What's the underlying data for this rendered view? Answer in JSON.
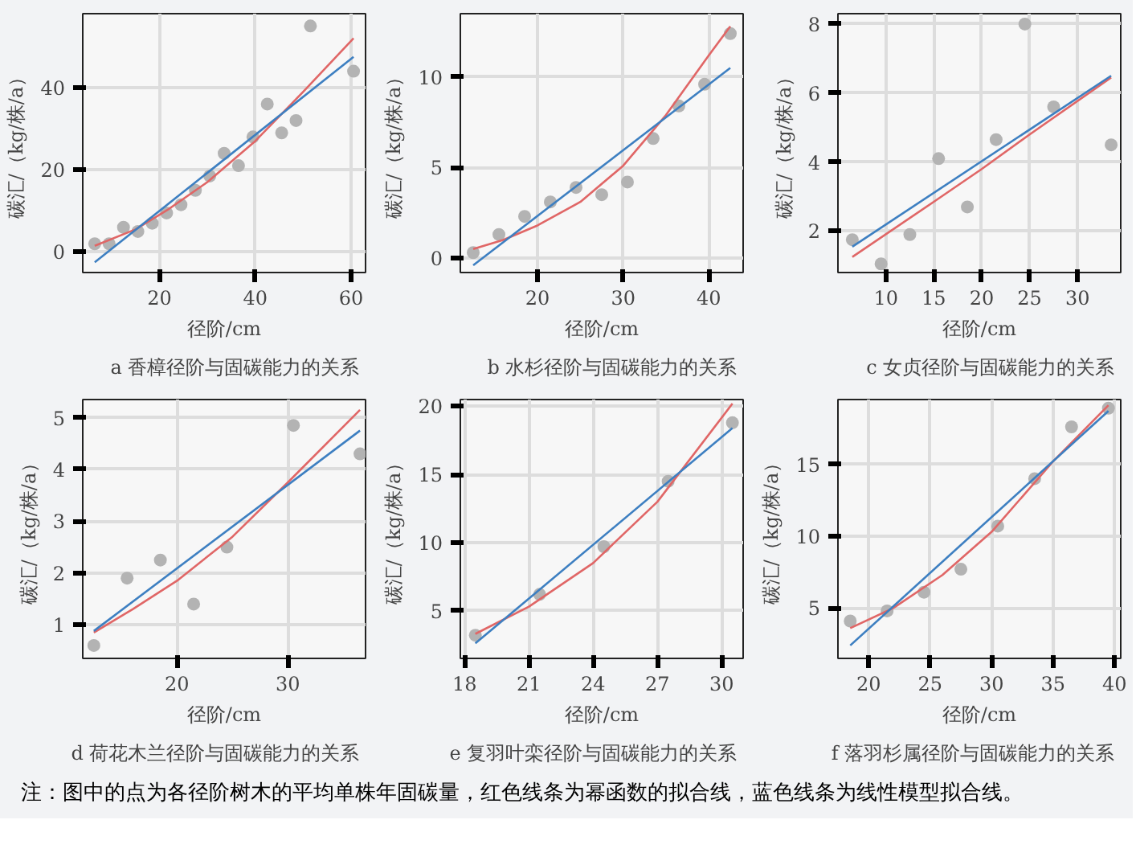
{
  "chart_data": [
    {
      "type": "scatter",
      "title": "a  香樟径阶与固碳能力的关系",
      "xlabel": "径阶/cm",
      "ylabel": "碳汇/（kg/株/a）",
      "xlim": [
        4,
        63
      ],
      "ylim": [
        -5,
        58
      ],
      "xticks": [
        20,
        40,
        60
      ],
      "yticks": [
        0,
        20,
        40
      ],
      "grid": true,
      "series": [
        {
          "marker": "circle",
          "color": "#b3b3b3",
          "x": [
            6.5,
            9.5,
            12.5,
            15.5,
            18.5,
            21.5,
            24.5,
            27.5,
            30.5,
            33.5,
            36.5,
            39.5,
            42.5,
            45.5,
            48.5,
            51.5,
            60.5
          ],
          "values": [
            2,
            2,
            6,
            5,
            7,
            9.5,
            11.5,
            15,
            18.5,
            24,
            21,
            28,
            36,
            29,
            32,
            55,
            44
          ]
        },
        {
          "type": "line",
          "marker": "none",
          "color": "#e06666",
          "x": [
            6.5,
            15,
            22,
            30,
            40,
            50,
            60.5
          ],
          "values": [
            1.5,
            5.5,
            10.5,
            17,
            27,
            39,
            52
          ]
        },
        {
          "type": "line",
          "marker": "none",
          "color": "#3d7fc1",
          "x": [
            6.5,
            60.5
          ],
          "values": [
            -2.5,
            47.5
          ]
        }
      ]
    },
    {
      "type": "scatter",
      "title": "b  水杉径阶与固碳能力的关系",
      "xlabel": "径阶/cm",
      "ylabel": "碳汇/（kg/株/a）",
      "xlim": [
        11,
        44
      ],
      "ylim": [
        -0.8,
        13.5
      ],
      "xticks": [
        20,
        30,
        40
      ],
      "yticks": [
        0,
        5,
        10
      ],
      "grid": true,
      "series": [
        {
          "marker": "circle",
          "color": "#b3b3b3",
          "x": [
            12.5,
            15.5,
            18.5,
            21.5,
            24.5,
            27.5,
            30.5,
            33.5,
            36.5,
            39.5,
            42.5
          ],
          "values": [
            0.3,
            1.3,
            2.3,
            3.1,
            3.9,
            3.5,
            4.2,
            6.6,
            8.4,
            9.6,
            12.4
          ]
        },
        {
          "type": "line",
          "marker": "none",
          "color": "#e06666",
          "x": [
            12.5,
            16,
            20,
            25,
            30,
            35,
            40,
            42.5
          ],
          "values": [
            0.5,
            1.0,
            1.8,
            3.1,
            5.1,
            7.9,
            11.2,
            12.8
          ]
        },
        {
          "type": "line",
          "marker": "none",
          "color": "#3d7fc1",
          "x": [
            12.5,
            42.5
          ],
          "values": [
            -0.4,
            10.5
          ]
        }
      ]
    },
    {
      "type": "scatter",
      "title": "c  女贞径阶与固碳能力的关系",
      "xlabel": "径阶/cm",
      "ylabel": "碳汇/（kg/株/a）",
      "xlim": [
        5,
        34.5
      ],
      "ylim": [
        0.8,
        8.3
      ],
      "xticks": [
        10,
        15,
        20,
        25,
        30
      ],
      "yticks": [
        2,
        4,
        6,
        8
      ],
      "grid": true,
      "series": [
        {
          "marker": "circle",
          "color": "#b3b3b3",
          "x": [
            6.5,
            9.5,
            12.5,
            15.5,
            18.5,
            21.5,
            24.5,
            27.5,
            33.5
          ],
          "values": [
            1.75,
            1.05,
            1.9,
            4.1,
            2.7,
            4.65,
            8,
            5.6,
            4.5
          ]
        },
        {
          "type": "line",
          "marker": "none",
          "color": "#e06666",
          "x": [
            6.5,
            15,
            20,
            25,
            33.5
          ],
          "values": [
            1.25,
            2.85,
            3.8,
            4.8,
            6.45
          ]
        },
        {
          "type": "line",
          "marker": "none",
          "color": "#3d7fc1",
          "x": [
            6.5,
            33.5
          ],
          "values": [
            1.55,
            6.5
          ]
        }
      ]
    },
    {
      "type": "scatter",
      "title": "d  荷花木兰径阶与固碳能力的关系",
      "xlabel": "径阶/cm",
      "ylabel": "碳汇/（kg/株/a）",
      "xlim": [
        11.5,
        37
      ],
      "ylim": [
        0.35,
        5.35
      ],
      "xticks": [
        20,
        30
      ],
      "yticks": [
        1,
        2,
        3,
        4,
        5
      ],
      "grid": true,
      "series": [
        {
          "marker": "circle",
          "color": "#b3b3b3",
          "x": [
            12.5,
            15.5,
            18.5,
            21.5,
            24.5,
            30.5,
            36.5
          ],
          "values": [
            0.6,
            1.9,
            2.25,
            1.4,
            2.5,
            4.85,
            4.3
          ]
        },
        {
          "type": "line",
          "marker": "none",
          "color": "#e06666",
          "x": [
            12.5,
            16,
            20,
            25,
            30,
            36.5
          ],
          "values": [
            0.85,
            1.3,
            1.85,
            2.7,
            3.75,
            5.15
          ]
        },
        {
          "type": "line",
          "marker": "none",
          "color": "#3d7fc1",
          "x": [
            12.5,
            36.5
          ],
          "values": [
            0.88,
            4.75
          ]
        }
      ]
    },
    {
      "type": "scatter",
      "title": "e  复羽叶栾径阶与固碳能力的关系",
      "xlabel": "径阶/cm",
      "ylabel": "碳汇/（kg/株/a）",
      "xlim": [
        17.8,
        31
      ],
      "ylim": [
        1.5,
        20.5
      ],
      "xticks": [
        18,
        21,
        24,
        27,
        30
      ],
      "yticks": [
        5,
        10,
        15,
        20
      ],
      "grid": true,
      "series": [
        {
          "marker": "circle",
          "color": "#b3b3b3",
          "x": [
            18.5,
            21.5,
            24.5,
            27.5,
            30.5
          ],
          "values": [
            3.2,
            6.2,
            9.7,
            14.5,
            18.8
          ]
        },
        {
          "type": "line",
          "marker": "none",
          "color": "#e06666",
          "x": [
            18.5,
            21,
            24,
            27,
            30.5
          ],
          "values": [
            3.3,
            5.3,
            8.5,
            13,
            20.2
          ]
        },
        {
          "type": "line",
          "marker": "none",
          "color": "#3d7fc1",
          "x": [
            18.5,
            30.5
          ],
          "values": [
            2.6,
            18.4
          ]
        }
      ]
    },
    {
      "type": "scatter",
      "title": "f  落羽杉属径阶与固碳能力的关系",
      "xlabel": "径阶/cm",
      "ylabel": "碳汇/（kg/株/a）",
      "xlim": [
        17.5,
        40.5
      ],
      "ylim": [
        1.5,
        19.5
      ],
      "xticks": [
        20,
        25,
        30,
        35,
        40
      ],
      "yticks": [
        5,
        10,
        15
      ],
      "grid": true,
      "annotations": [
        "注：图中的点为各径阶树木的平均单株年固碳量，红色线条为幂函数的拟合线，蓝色线条为线性模型拟合线。"
      ],
      "series": [
        {
          "marker": "circle",
          "color": "#b3b3b3",
          "x": [
            18.5,
            21.5,
            24.5,
            27.5,
            30.5,
            33.5,
            36.5,
            39.5
          ],
          "values": [
            4.1,
            4.8,
            6.1,
            7.7,
            10.7,
            14,
            17.6,
            18.9
          ]
        },
        {
          "type": "line",
          "marker": "none",
          "color": "#e06666",
          "x": [
            18.5,
            22,
            26,
            30,
            35,
            39.5
          ],
          "values": [
            3.6,
            5,
            7.3,
            10.3,
            15.2,
            19.1
          ]
        },
        {
          "type": "line",
          "marker": "none",
          "color": "#3d7fc1",
          "x": [
            18.5,
            39.5
          ],
          "values": [
            2.4,
            18.7
          ]
        }
      ]
    }
  ]
}
